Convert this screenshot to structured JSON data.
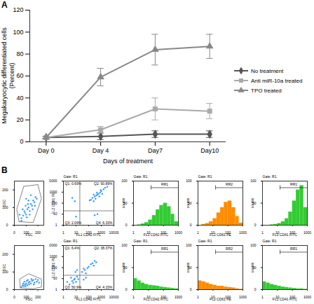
{
  "chart_data": [
    {
      "type": "line",
      "annotations": [
        "A"
      ],
      "categories": [
        "Day 0",
        "Day 4",
        "Day7",
        "Day10"
      ],
      "xlabel": "Days of treatment",
      "ylabel": "Megakaryocytic differentiated cells (Percent)",
      "ylim": [
        0,
        120
      ],
      "yticks": [
        0,
        20,
        40,
        60,
        80,
        100,
        120
      ],
      "grid": false,
      "legend": "right",
      "series": [
        {
          "name": "No treatment",
          "color": "#555555",
          "marker": "diamond",
          "values": [
            4,
            5,
            7,
            7
          ],
          "errors": [
            1,
            3,
            3,
            3
          ]
        },
        {
          "name": "Anti miR-10a treated",
          "color": "#aaaaaa",
          "marker": "square",
          "values": [
            4,
            11,
            30,
            28
          ],
          "errors": [
            1,
            3,
            10,
            7
          ]
        },
        {
          "name": "TPO treated",
          "color": "#888888",
          "marker": "triangle",
          "values": [
            4,
            59,
            84,
            87
          ],
          "errors": [
            1,
            8,
            14,
            11
          ]
        }
      ]
    },
    {
      "type": "scatter",
      "annotations": [
        "B"
      ],
      "xlabel": "FSC",
      "ylabel": "SSC",
      "color": "#3399ff",
      "xlim": [
        0,
        250
      ],
      "xticks": [
        0,
        100,
        200
      ],
      "ylim": [
        0,
        250
      ],
      "yticks": [
        0,
        100,
        200
      ],
      "points": [
        [
          60,
          40
        ],
        [
          75,
          55
        ],
        [
          90,
          70
        ],
        [
          100,
          60
        ],
        [
          110,
          90
        ],
        [
          120,
          100
        ],
        [
          130,
          80
        ],
        [
          140,
          120
        ],
        [
          150,
          110
        ],
        [
          160,
          140
        ],
        [
          170,
          130
        ],
        [
          180,
          160
        ],
        [
          95,
          110
        ],
        [
          85,
          80
        ],
        [
          120,
          140
        ],
        [
          140,
          170
        ],
        [
          70,
          90
        ],
        [
          105,
          45
        ],
        [
          130,
          60
        ],
        [
          155,
          90
        ],
        [
          175,
          110
        ],
        [
          190,
          150
        ],
        [
          115,
          120
        ],
        [
          100,
          150
        ],
        [
          60,
          25
        ],
        [
          45,
          60
        ]
      ],
      "gate": [
        [
          40,
          20
        ],
        [
          20,
          90
        ],
        [
          80,
          220
        ],
        [
          200,
          230
        ],
        [
          230,
          150
        ],
        [
          160,
          15
        ]
      ]
    },
    {
      "type": "scatter",
      "title": "Gate: R1",
      "xlabel": "FL1 CD42 FITC",
      "ylabel": "FL2 CD61 PE",
      "color": "#3399ff",
      "log": true,
      "xlim": [
        1,
        10000
      ],
      "xticks": [
        1,
        10,
        100,
        1000,
        10000
      ],
      "ylim": [
        1,
        10000
      ],
      "yticks": [
        1,
        10,
        100,
        1000,
        10000
      ],
      "points": [
        [
          200,
          300
        ],
        [
          300,
          400
        ],
        [
          400,
          500
        ],
        [
          500,
          600
        ],
        [
          600,
          700
        ],
        [
          800,
          900
        ],
        [
          1000,
          1200
        ],
        [
          1500,
          1800
        ],
        [
          250,
          600
        ],
        [
          350,
          250
        ],
        [
          700,
          400
        ],
        [
          900,
          1500
        ],
        [
          2000,
          2500
        ],
        [
          150,
          200
        ],
        [
          450,
          900
        ],
        [
          120,
          180
        ],
        [
          5,
          300
        ],
        [
          8,
          150
        ],
        [
          300,
          8
        ],
        [
          500,
          10
        ],
        [
          10,
          6
        ],
        [
          3000,
          3000
        ],
        [
          1200,
          700
        ],
        [
          250,
          150
        ]
      ],
      "quadrant": {
        "x": 20,
        "y": 20
      },
      "quadrant_labels": [
        "Q1: 0.69%",
        "Q2: 90.89%",
        "Q3: 2.09%",
        "Q4: 6.33%"
      ]
    },
    {
      "type": "histogram",
      "title": "Gate: R1",
      "xlabel": "FL1 CD42 FITC",
      "ylabel": "counts",
      "color": "#33cc33",
      "log": "x",
      "xlim": [
        1,
        1000
      ],
      "xticks": [
        1,
        10,
        100,
        1000
      ],
      "ylim": [
        0,
        100
      ],
      "yticks": [
        0,
        50,
        100
      ],
      "bins": [
        1,
        1.8,
        3.2,
        5.6,
        10,
        18,
        32,
        56,
        100,
        180,
        320,
        560,
        1000
      ],
      "counts": [
        0,
        1,
        3,
        6,
        12,
        22,
        35,
        45,
        50,
        42,
        25,
        8
      ],
      "marker": {
        "label": "RR1",
        "range": [
          15,
          1000
        ]
      }
    },
    {
      "type": "histogram",
      "title": "Gate: R1",
      "xlabel": "FL2 CD61 PE",
      "ylabel": "counts",
      "color": "#ff8c00",
      "log": "x",
      "xlim": [
        1,
        1000
      ],
      "xticks": [
        1,
        10,
        100,
        1000
      ],
      "ylim": [
        0,
        100
      ],
      "yticks": [
        0,
        50,
        100
      ],
      "bins": [
        1,
        1.8,
        3.2,
        5.6,
        10,
        18,
        32,
        56,
        100,
        180,
        320,
        560,
        1000
      ],
      "counts": [
        0,
        2,
        4,
        8,
        15,
        28,
        40,
        52,
        55,
        40,
        20,
        5
      ],
      "marker": {
        "label": "RR2",
        "range": [
          15,
          1000
        ]
      }
    },
    {
      "type": "histogram",
      "title": "Gate: R1",
      "xlabel": "FL1 CD41 FITC",
      "ylabel": "counts",
      "color": "#33cc33",
      "log": "x",
      "xlim": [
        1,
        1000
      ],
      "xticks": [
        1,
        10,
        100,
        1000
      ],
      "ylim": [
        0,
        100
      ],
      "yticks": [
        0,
        50,
        100
      ],
      "bins": [
        1,
        1.8,
        3.2,
        5.6,
        10,
        18,
        32,
        56,
        100,
        180,
        320,
        560,
        1000
      ],
      "counts": [
        0,
        0,
        1,
        2,
        4,
        8,
        15,
        30,
        55,
        80,
        90,
        40
      ],
      "marker": {
        "label": "RR1",
        "range": [
          15,
          1000
        ]
      }
    },
    {
      "type": "scatter",
      "xlabel": "FSC",
      "ylabel": "SSC",
      "color": "#3399ff",
      "xlim": [
        0,
        250
      ],
      "xticks": [
        0,
        100,
        200
      ],
      "ylim": [
        0,
        250
      ],
      "yticks": [
        0,
        100,
        200
      ],
      "points": [
        [
          60,
          15
        ],
        [
          70,
          25
        ],
        [
          80,
          20
        ],
        [
          90,
          30
        ],
        [
          100,
          35
        ],
        [
          110,
          25
        ],
        [
          120,
          40
        ],
        [
          130,
          45
        ],
        [
          140,
          35
        ],
        [
          150,
          50
        ],
        [
          160,
          55
        ],
        [
          170,
          40
        ],
        [
          180,
          60
        ],
        [
          190,
          45
        ],
        [
          200,
          55
        ],
        [
          85,
          45
        ],
        [
          105,
          50
        ],
        [
          125,
          30
        ],
        [
          145,
          60
        ],
        [
          165,
          30
        ],
        [
          210,
          40
        ],
        [
          75,
          35
        ],
        [
          95,
          20
        ],
        [
          115,
          55
        ]
      ],
      "gate": [
        [
          50,
          10
        ],
        [
          45,
          60
        ],
        [
          120,
          90
        ],
        [
          230,
          60
        ],
        [
          230,
          15
        ],
        [
          160,
          5
        ]
      ]
    },
    {
      "type": "scatter",
      "title": "Gate: R1",
      "xlabel": "FL1 CD42 FITC",
      "ylabel": "FL2 CD61 PE",
      "color": "#3399ff",
      "log": true,
      "xlim": [
        1,
        10000
      ],
      "xticks": [
        1,
        10,
        100,
        1000,
        10000
      ],
      "ylim": [
        1,
        10000
      ],
      "yticks": [
        1,
        10,
        100,
        1000,
        10000
      ],
      "points": [
        [
          3,
          3
        ],
        [
          5,
          6
        ],
        [
          8,
          10
        ],
        [
          10,
          5
        ],
        [
          4,
          12
        ],
        [
          6,
          4
        ],
        [
          12,
          15
        ],
        [
          15,
          9
        ],
        [
          30,
          40
        ],
        [
          50,
          60
        ],
        [
          80,
          90
        ],
        [
          100,
          120
        ],
        [
          150,
          200
        ],
        [
          200,
          250
        ],
        [
          300,
          400
        ],
        [
          60,
          30
        ],
        [
          40,
          80
        ],
        [
          9,
          40
        ],
        [
          12,
          60
        ],
        [
          40,
          8
        ],
        [
          60,
          12
        ],
        [
          7,
          8
        ],
        [
          2,
          5
        ],
        [
          400,
          300
        ],
        [
          250,
          150
        ]
      ],
      "quadrant": {
        "x": 20,
        "y": 20
      },
      "quadrant_labels": [
        "Q1: 6.4%",
        "Q2: 38.37%",
        "Q3: 50.9%",
        "Q4: 4.33%"
      ]
    },
    {
      "type": "histogram",
      "title": "Gate: R1",
      "xlabel": "FL1 CD42 FITC",
      "ylabel": "counts",
      "color": "#33cc33",
      "log": "x",
      "xlim": [
        1,
        1000
      ],
      "xticks": [
        1,
        10,
        100,
        1000
      ],
      "ylim": [
        0,
        100
      ],
      "yticks": [
        0,
        50,
        100
      ],
      "bins": [
        1,
        1.8,
        3.2,
        5.6,
        10,
        18,
        32,
        56,
        100,
        180,
        320,
        560,
        1000
      ],
      "counts": [
        25,
        20,
        15,
        12,
        10,
        9,
        8,
        6,
        5,
        4,
        3,
        2
      ],
      "marker": {
        "label": "RR1",
        "range": [
          15,
          1000
        ]
      }
    },
    {
      "type": "histogram",
      "title": "Gate: R1",
      "xlabel": "FL2 CD61 PE",
      "ylabel": "counts",
      "color": "#ff8c00",
      "log": "x",
      "xlim": [
        1,
        1000
      ],
      "xticks": [
        1,
        10,
        100,
        1000
      ],
      "ylim": [
        0,
        100
      ],
      "yticks": [
        0,
        50,
        100
      ],
      "bins": [
        1,
        1.8,
        3.2,
        5.6,
        10,
        18,
        32,
        56,
        100,
        180,
        320,
        560,
        1000
      ],
      "counts": [
        20,
        18,
        15,
        12,
        10,
        8,
        8,
        6,
        5,
        4,
        2,
        1
      ],
      "marker": {
        "label": "RR2",
        "range": [
          15,
          1000
        ]
      }
    },
    {
      "type": "histogram",
      "title": "Gate: R1",
      "xlabel": "FL1 CD41 FITC",
      "ylabel": "counts",
      "color": "#33cc33",
      "log": "x",
      "xlim": [
        1,
        1000
      ],
      "xticks": [
        1,
        10,
        100,
        1000
      ],
      "ylim": [
        0,
        100
      ],
      "yticks": [
        0,
        50,
        100
      ],
      "bins": [
        1,
        1.8,
        3.2,
        5.6,
        10,
        18,
        32,
        56,
        100,
        180,
        320,
        560,
        1000
      ],
      "counts": [
        18,
        15,
        12,
        10,
        8,
        6,
        5,
        4,
        3,
        2,
        2,
        1
      ],
      "marker": {
        "label": "RR1",
        "range": [
          15,
          1000
        ]
      }
    }
  ]
}
